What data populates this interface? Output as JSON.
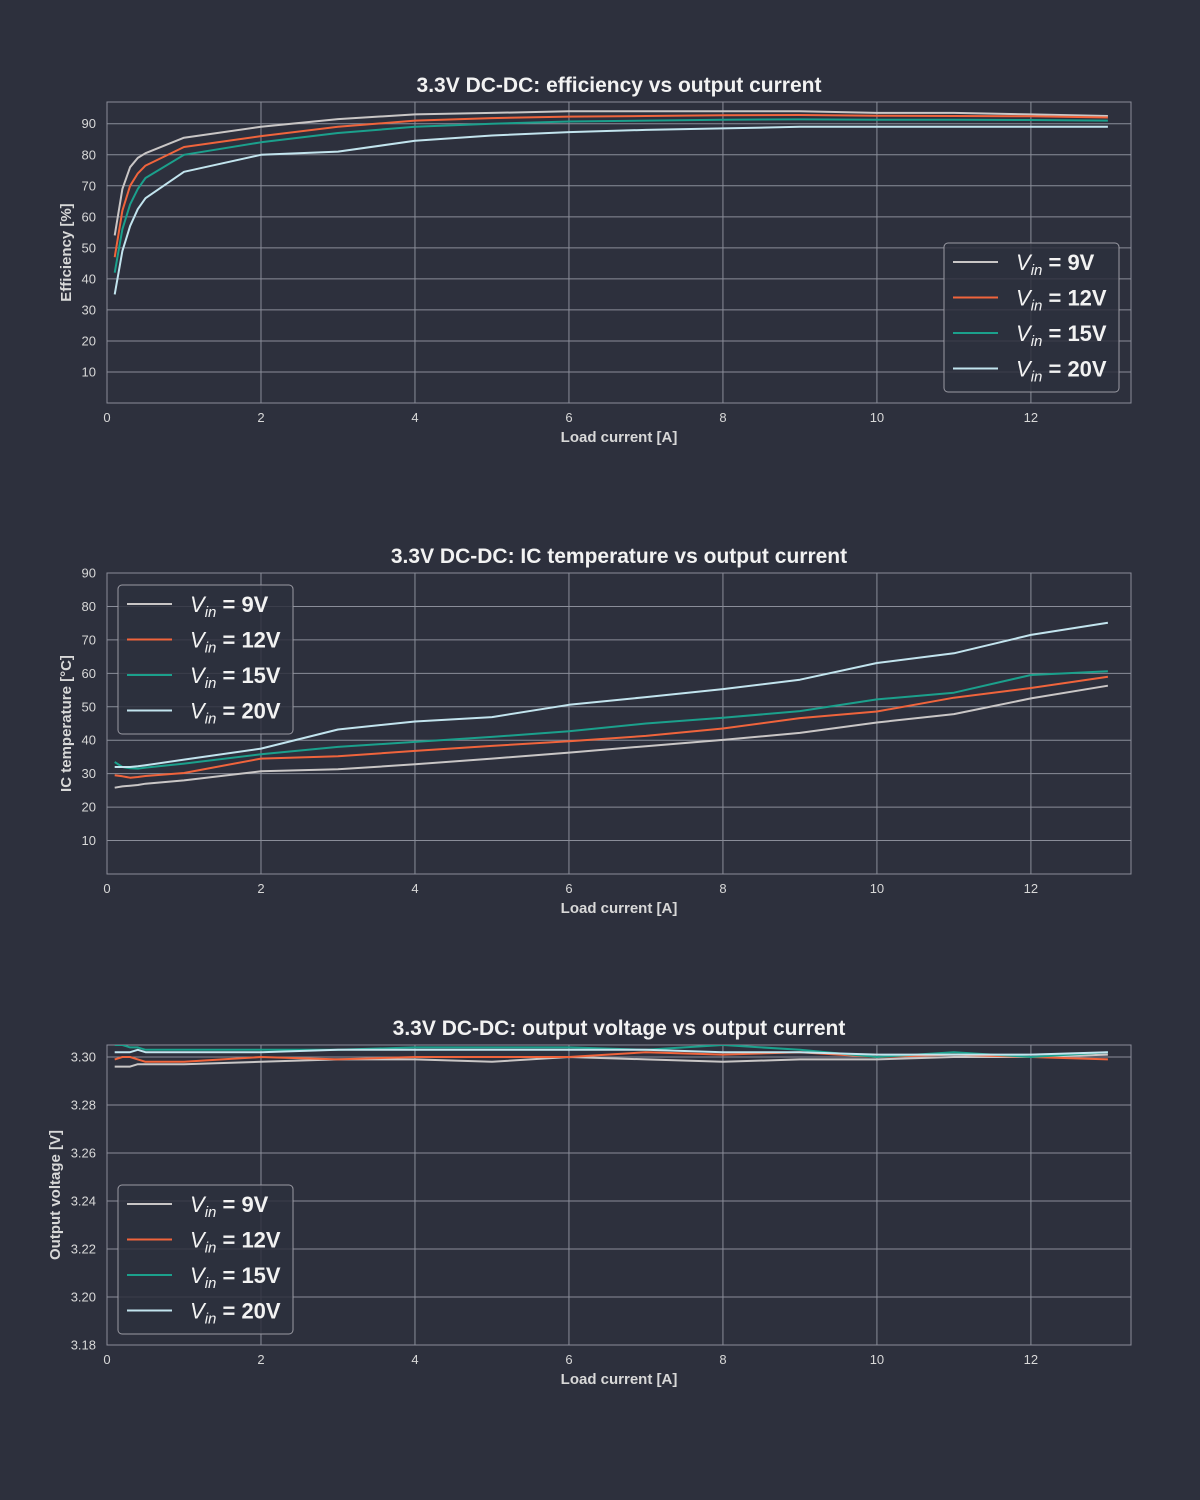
{
  "colors": {
    "background": "#2d303d",
    "grid": "#8a8d99",
    "axis_text": "#d8d8d8",
    "title_text": "#f2f2f2",
    "legend_border": "#9a9aa3"
  },
  "chart_data": [
    {
      "type": "line",
      "title": "3.3V DC-DC: efficiency vs output current",
      "xlabel": "Load current [A]",
      "ylabel": "Efficiency [%]",
      "xlim": [
        0,
        13.3
      ],
      "ylim": [
        0,
        97
      ],
      "xticks": [
        0,
        2,
        4,
        6,
        8,
        10,
        12
      ],
      "yticks": [
        10,
        20,
        30,
        40,
        50,
        60,
        70,
        80,
        90
      ],
      "yformat": 0,
      "grid": true,
      "legend": "center-right",
      "x": [
        0.1,
        0.2,
        0.3,
        0.4,
        0.5,
        1,
        2,
        3,
        4,
        5,
        6,
        7,
        8,
        9,
        10,
        11,
        12,
        13
      ],
      "series": [
        {
          "name": "9V",
          "color": "#c9c6c6",
          "values": [
            54,
            69,
            76,
            79,
            80.5,
            85.5,
            89,
            91.5,
            93,
            93.5,
            94,
            94,
            94,
            94,
            93.5,
            93.5,
            93,
            92.5
          ]
        },
        {
          "name": "12V",
          "color": "#f0643c",
          "values": [
            47,
            62,
            70,
            74,
            76.5,
            82.5,
            86,
            89,
            91,
            91.8,
            92.3,
            92.5,
            92.7,
            92.8,
            92.6,
            92.5,
            92.4,
            92
          ]
        },
        {
          "name": "15V",
          "color": "#1ba08c",
          "values": [
            42,
            56,
            64,
            69,
            72.5,
            80,
            84,
            87,
            89,
            90,
            90.7,
            91,
            91.3,
            91.4,
            91.3,
            91.3,
            91.2,
            91
          ]
        },
        {
          "name": "20V",
          "color": "#c2e4ee",
          "values": [
            35,
            49,
            57,
            62.5,
            66,
            74.5,
            80,
            81,
            84.5,
            86.2,
            87.3,
            88,
            88.5,
            89,
            89,
            89,
            89,
            89
          ]
        }
      ]
    },
    {
      "type": "line",
      "title": "3.3V DC-DC: IC temperature vs output current",
      "xlabel": "Load current [A]",
      "ylabel": "IC temperature [°C]",
      "xlim": [
        0,
        13.3
      ],
      "ylim": [
        0,
        90
      ],
      "xticks": [
        0,
        2,
        4,
        6,
        8,
        10,
        12
      ],
      "yticks": [
        10,
        20,
        30,
        40,
        50,
        60,
        70,
        80,
        90
      ],
      "yformat": 0,
      "grid": true,
      "legend": "top-left",
      "x": [
        0.1,
        0.2,
        0.3,
        0.4,
        0.5,
        1,
        2,
        3,
        4,
        5,
        6,
        7,
        8,
        9,
        10,
        11,
        12,
        13
      ],
      "series": [
        {
          "name": "9V",
          "color": "#c9c6c6",
          "values": [
            25.8,
            26.2,
            26.4,
            26.6,
            27,
            28,
            30.7,
            31.3,
            32.8,
            34.5,
            36.3,
            38.2,
            40.1,
            42.2,
            45.3,
            47.8,
            52.5,
            56.3
          ]
        },
        {
          "name": "12V",
          "color": "#f0643c",
          "values": [
            29.5,
            29.2,
            28.8,
            29,
            29.3,
            30.2,
            34.5,
            35.2,
            36.8,
            38.3,
            39.7,
            41.3,
            43.5,
            46.6,
            48.6,
            52.7,
            55.6,
            59
          ]
        },
        {
          "name": "15V",
          "color": "#1ba08c",
          "values": [
            33.5,
            32,
            31.6,
            31.5,
            31.8,
            33,
            35.8,
            38,
            39.5,
            41,
            42.7,
            45,
            46.7,
            48.7,
            52.2,
            54.2,
            59.5,
            60.6
          ]
        },
        {
          "name": "20V",
          "color": "#c2e4ee",
          "values": [
            32,
            32,
            32,
            32.2,
            32.5,
            34.2,
            37.5,
            43.2,
            45.6,
            46.9,
            50.6,
            52.9,
            55.3,
            58.1,
            63.1,
            66,
            71.5,
            75.1
          ]
        }
      ]
    },
    {
      "type": "line",
      "title": "3.3V DC-DC: output voltage vs output current",
      "xlabel": "Load current [A]",
      "ylabel": "Output voltage [V]",
      "xlim": [
        0,
        13.3
      ],
      "ylim": [
        3.18,
        3.305
      ],
      "xticks": [
        0,
        2,
        4,
        6,
        8,
        10,
        12
      ],
      "yticks": [
        3.18,
        3.2,
        3.22,
        3.24,
        3.26,
        3.28,
        3.3
      ],
      "yformat": 2,
      "grid": true,
      "legend": "lower-left",
      "x": [
        0.1,
        0.2,
        0.3,
        0.4,
        0.5,
        1,
        2,
        3,
        4,
        5,
        6,
        7,
        8,
        9,
        10,
        11,
        12,
        13
      ],
      "series": [
        {
          "name": "9V",
          "color": "#c9c6c6",
          "values": [
            3.296,
            3.296,
            3.296,
            3.297,
            3.297,
            3.297,
            3.298,
            3.299,
            3.299,
            3.298,
            3.3,
            3.299,
            3.298,
            3.299,
            3.299,
            3.3,
            3.3,
            3.301
          ]
        },
        {
          "name": "12V",
          "color": "#f0643c",
          "values": [
            3.299,
            3.3,
            3.3,
            3.299,
            3.298,
            3.298,
            3.3,
            3.299,
            3.3,
            3.3,
            3.3,
            3.302,
            3.301,
            3.302,
            3.3,
            3.301,
            3.3,
            3.299
          ]
        },
        {
          "name": "15V",
          "color": "#1ba08c",
          "values": [
            3.305,
            3.305,
            3.304,
            3.304,
            3.303,
            3.303,
            3.303,
            3.303,
            3.304,
            3.304,
            3.304,
            3.303,
            3.305,
            3.303,
            3.3,
            3.302,
            3.3,
            3.302
          ]
        },
        {
          "name": "20V",
          "color": "#c2e4ee",
          "values": [
            3.302,
            3.302,
            3.302,
            3.303,
            3.302,
            3.302,
            3.302,
            3.303,
            3.303,
            3.303,
            3.303,
            3.303,
            3.302,
            3.302,
            3.301,
            3.301,
            3.301,
            3.302
          ]
        }
      ]
    }
  ]
}
